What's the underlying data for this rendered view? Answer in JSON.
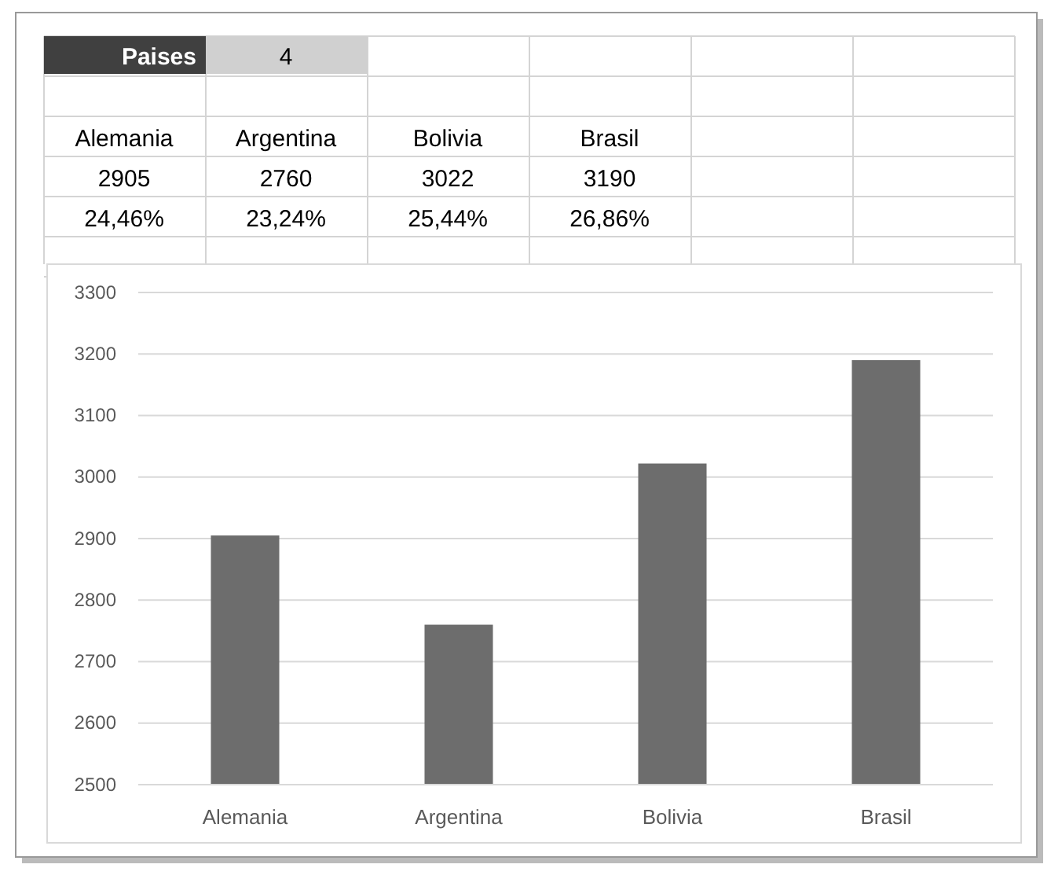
{
  "chart_data": {
    "type": "bar",
    "categories": [
      "Alemania",
      "Argentina",
      "Bolivia",
      "Brasil"
    ],
    "values": [
      2905,
      2760,
      3022,
      3190
    ],
    "color": "#6d6d6d",
    "ylim": [
      2500,
      3300
    ],
    "yticks": [
      2500,
      2600,
      2700,
      2800,
      2900,
      3000,
      3100,
      3200,
      3300
    ],
    "grid": "y",
    "annotations": [
      "Paises",
      "4",
      "2905",
      "2760",
      "3022",
      "3190",
      "24,46%",
      "23,24%",
      "25,44%",
      "26,86%"
    ]
  }
}
